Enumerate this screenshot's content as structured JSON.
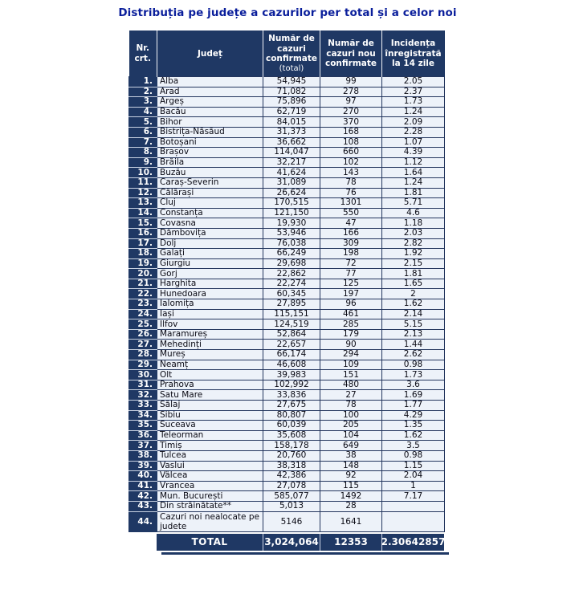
{
  "title": "Distribuția pe județe a cazurilor per total și a celor noi",
  "colors": {
    "title_text": "#0A1E9B",
    "header_bg": "#1F3864",
    "row_bg": "#EDF2F9",
    "grid_border": "#24365E",
    "nr_underline": "#C9D2E2"
  },
  "table": {
    "headers": [
      {
        "label": "Nr. crt."
      },
      {
        "label": "Județ"
      },
      {
        "label": "Număr de cazuri confirmate",
        "sub": "(total)"
      },
      {
        "label": "Număr de cazuri nou confirmate"
      },
      {
        "label": "Incidența înregistrată la 14 zile"
      }
    ],
    "rows": [
      [
        "1.",
        "Alba",
        "54,945",
        "99",
        "2.05"
      ],
      [
        "2.",
        "Arad",
        "71,082",
        "278",
        "2.37"
      ],
      [
        "3.",
        "Argeș",
        "75,896",
        "97",
        "1.73"
      ],
      [
        "4.",
        "Bacău",
        "62,719",
        "270",
        "1.24"
      ],
      [
        "5.",
        "Bihor",
        "84,015",
        "370",
        "2.09"
      ],
      [
        "6.",
        "Bistrița-Năsăud",
        "31,373",
        "168",
        "2.28"
      ],
      [
        "7.",
        "Botoșani",
        "36,662",
        "108",
        "1.07"
      ],
      [
        "8.",
        "Brașov",
        "114,047",
        "660",
        "4.39"
      ],
      [
        "9.",
        "Brăila",
        "32,217",
        "102",
        "1.12"
      ],
      [
        "10.",
        "Buzău",
        "41,624",
        "143",
        "1.64"
      ],
      [
        "11.",
        "Caraș-Severin",
        "31,089",
        "78",
        "1.24"
      ],
      [
        "12.",
        "Călărași",
        "26,624",
        "76",
        "1.81"
      ],
      [
        "13.",
        "Cluj",
        "170,515",
        "1301",
        "5.71"
      ],
      [
        "14.",
        "Constanța",
        "121,150",
        "550",
        "4.6"
      ],
      [
        "15.",
        "Covasna",
        "19,930",
        "47",
        "1.18"
      ],
      [
        "16.",
        "Dâmbovița",
        "53,946",
        "166",
        "2.03"
      ],
      [
        "17.",
        "Dolj",
        "76,038",
        "309",
        "2.82"
      ],
      [
        "18.",
        "Galați",
        "66,249",
        "198",
        "1.92"
      ],
      [
        "19.",
        "Giurgiu",
        "29,698",
        "72",
        "2.15"
      ],
      [
        "20.",
        "Gorj",
        "22,862",
        "77",
        "1.81"
      ],
      [
        "21.",
        "Harghita",
        "22,274",
        "125",
        "1.65"
      ],
      [
        "22.",
        "Hunedoara",
        "60,345",
        "197",
        "2"
      ],
      [
        "23.",
        "Ialomița",
        "27,895",
        "96",
        "1.62"
      ],
      [
        "24.",
        "Iași",
        "115,151",
        "461",
        "2.14"
      ],
      [
        "25.",
        "Ilfov",
        "124,519",
        "285",
        "5.15"
      ],
      [
        "26.",
        "Maramureș",
        "52,864",
        "179",
        "2.13"
      ],
      [
        "27.",
        "Mehedinți",
        "22,657",
        "90",
        "1.44"
      ],
      [
        "28.",
        "Mureș",
        "66,174",
        "294",
        "2.62"
      ],
      [
        "29.",
        "Neamț",
        "46,608",
        "109",
        "0.98"
      ],
      [
        "30.",
        "Olt",
        "39,983",
        "151",
        "1.73"
      ],
      [
        "31.",
        "Prahova",
        "102,992",
        "480",
        "3.6"
      ],
      [
        "32.",
        "Satu Mare",
        "33,836",
        "27",
        "1.69"
      ],
      [
        "33.",
        "Sălaj",
        "27,675",
        "78",
        "1.77"
      ],
      [
        "34.",
        "Sibiu",
        "80,807",
        "100",
        "4.29"
      ],
      [
        "35.",
        "Suceava",
        "60,039",
        "205",
        "1.35"
      ],
      [
        "36.",
        "Teleorman",
        "35,608",
        "104",
        "1.62"
      ],
      [
        "37.",
        "Timiș",
        "158,178",
        "649",
        "3.5"
      ],
      [
        "38.",
        "Tulcea",
        "20,760",
        "38",
        "0.98"
      ],
      [
        "39.",
        "Vaslui",
        "38,318",
        "148",
        "1.15"
      ],
      [
        "40.",
        "Vâlcea",
        "42,386",
        "92",
        "2.04"
      ],
      [
        "41.",
        "Vrancea",
        "27,078",
        "115",
        "1"
      ],
      [
        "42.",
        "Mun. București",
        "585,077",
        "1492",
        "7.17"
      ],
      [
        "43.",
        "Din străinătate**",
        "5,013",
        "28",
        ""
      ],
      [
        "44.",
        "Cazuri noi nealocate pe judete",
        "5146",
        "1641",
        ""
      ]
    ],
    "total": {
      "label": "TOTAL",
      "confirmed": "3,024,064",
      "new_cases": "12353",
      "incidence": "2.30642857"
    }
  }
}
